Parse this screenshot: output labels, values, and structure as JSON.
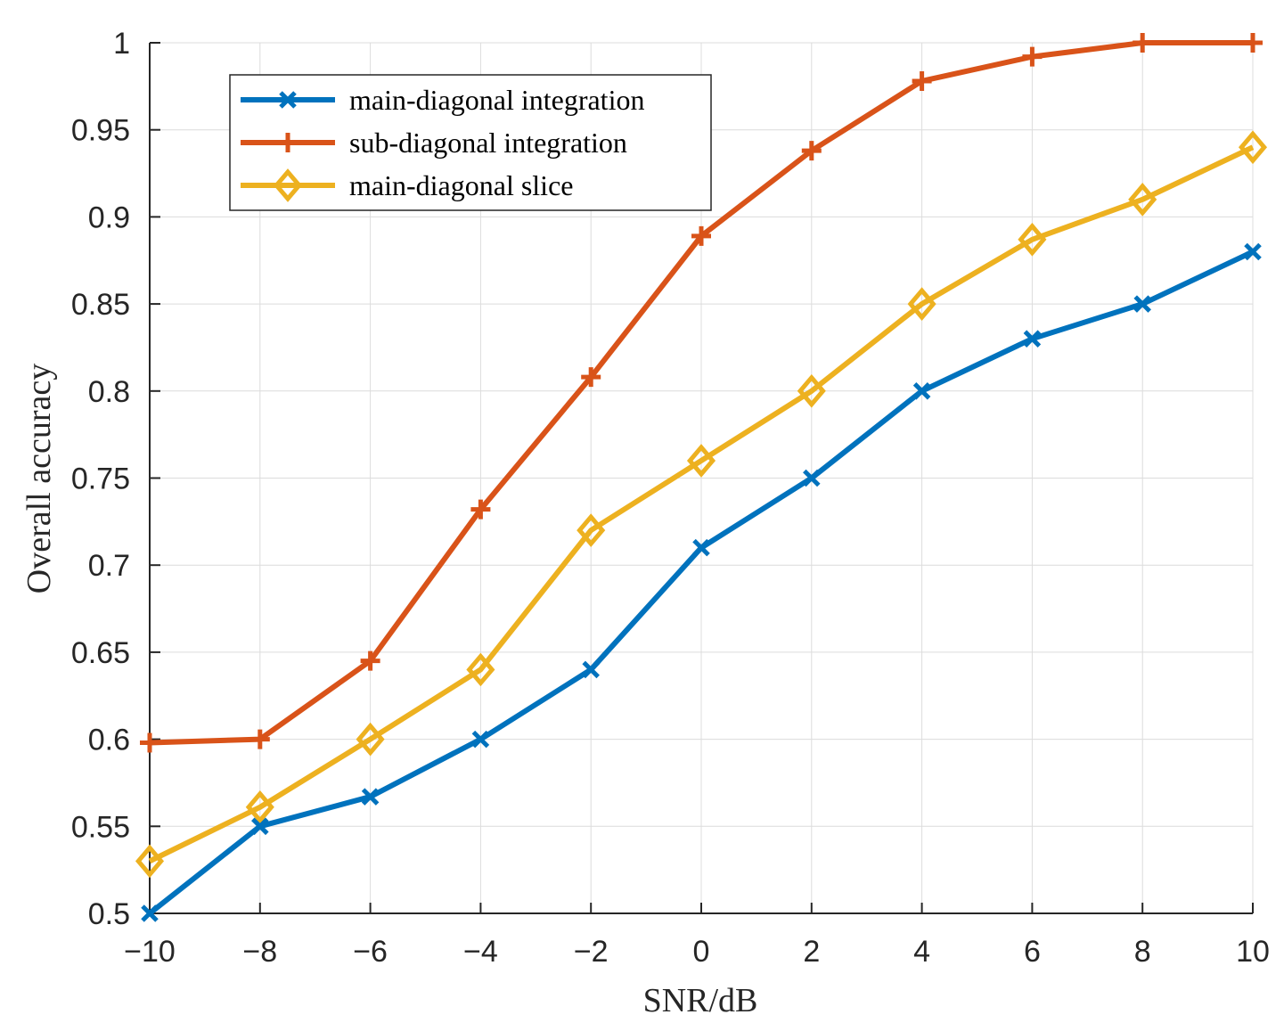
{
  "chart_data": {
    "type": "line",
    "title": "",
    "xlabel": "SNR/dB",
    "ylabel": "Overall accuracy",
    "x": [
      -10,
      -8,
      -6,
      -4,
      -2,
      0,
      2,
      4,
      6,
      8,
      10
    ],
    "xlim": [
      -10,
      10
    ],
    "ylim": [
      0.5,
      1.0
    ],
    "xticks": [
      -10,
      -8,
      -6,
      -4,
      -2,
      0,
      2,
      4,
      6,
      8,
      10
    ],
    "xtick_labels": [
      "−10",
      "−8",
      "−6",
      "−4",
      "−2",
      "0",
      "2",
      "4",
      "6",
      "8",
      "10"
    ],
    "yticks": [
      0.5,
      0.55,
      0.6,
      0.65,
      0.7,
      0.75,
      0.8,
      0.85,
      0.9,
      0.95,
      1.0
    ],
    "ytick_labels": [
      "0.5",
      "0.55",
      "0.6",
      "0.65",
      "0.7",
      "0.75",
      "0.8",
      "0.85",
      "0.9",
      "0.95",
      "1"
    ],
    "grid": true,
    "legend_position": "top-left",
    "series": [
      {
        "name": "main-diagonal integration",
        "color": "#0072BD",
        "marker": "x",
        "values": [
          0.5,
          0.55,
          0.567,
          0.6,
          0.64,
          0.71,
          0.75,
          0.8,
          0.83,
          0.85,
          0.88
        ]
      },
      {
        "name": "sub-diagonal integration",
        "color": "#D95319",
        "marker": "plus",
        "values": [
          0.598,
          0.6,
          0.645,
          0.732,
          0.808,
          0.889,
          0.938,
          0.978,
          0.992,
          1.0,
          1.0
        ]
      },
      {
        "name": "main-diagonal slice",
        "color": "#EDB120",
        "marker": "diamond",
        "values": [
          0.53,
          0.561,
          0.6,
          0.64,
          0.72,
          0.76,
          0.8,
          0.85,
          0.887,
          0.91,
          0.94
        ]
      }
    ]
  }
}
